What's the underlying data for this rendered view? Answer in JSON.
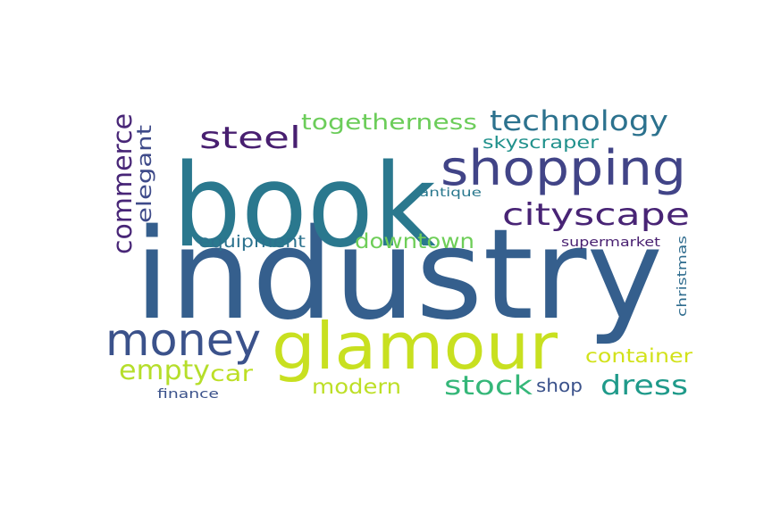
{
  "word_cloud": {
    "words": [
      {
        "id": "industry",
        "text": "industry",
        "color": "#355f8d"
      },
      {
        "id": "book",
        "text": "book",
        "color": "#2a788e"
      },
      {
        "id": "glamour",
        "text": "glamour",
        "color": "#c8e020"
      },
      {
        "id": "shopping",
        "text": "shopping",
        "color": "#414487"
      },
      {
        "id": "money",
        "text": "money",
        "color": "#3b528b"
      },
      {
        "id": "cityscape",
        "text": "cityscape",
        "color": "#482475"
      },
      {
        "id": "technology",
        "text": "technology",
        "color": "#2c728e"
      },
      {
        "id": "steel",
        "text": "steel",
        "color": "#481f70"
      },
      {
        "id": "commerce",
        "text": "commerce",
        "color": "#482677"
      },
      {
        "id": "elegant",
        "text": "elegant",
        "color": "#3e4a89"
      },
      {
        "id": "togetherness",
        "text": "togetherness",
        "color": "#6ccd5a"
      },
      {
        "id": "skyscraper",
        "text": "skyscraper",
        "color": "#21918c"
      },
      {
        "id": "antique",
        "text": "antique",
        "color": "#2a788e"
      },
      {
        "id": "equipment",
        "text": "equipment",
        "color": "#2c728e"
      },
      {
        "id": "downtown",
        "text": "downtown",
        "color": "#6ece58"
      },
      {
        "id": "supermarket",
        "text": "supermarket",
        "color": "#481f70"
      },
      {
        "id": "christmas",
        "text": "christmas",
        "color": "#2f6c8e"
      },
      {
        "id": "empty",
        "text": "empty",
        "color": "#b5de2b"
      },
      {
        "id": "car",
        "text": "car",
        "color": "#bddf26"
      },
      {
        "id": "modern",
        "text": "modern",
        "color": "#bddf26"
      },
      {
        "id": "stock",
        "text": "stock",
        "color": "#35b779"
      },
      {
        "id": "shop",
        "text": "shop",
        "color": "#3b528b"
      },
      {
        "id": "dress",
        "text": "dress",
        "color": "#1f9a8a"
      },
      {
        "id": "container",
        "text": "container",
        "color": "#d2e21b"
      },
      {
        "id": "finance",
        "text": "finance",
        "color": "#3b528b"
      }
    ]
  }
}
